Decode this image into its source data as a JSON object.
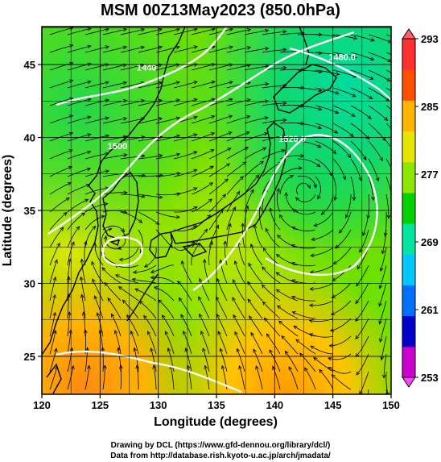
{
  "title": "MSM 00Z13May2023 (850.0hPa)",
  "x_axis": {
    "label": "Longitude (degrees)",
    "ticks": [
      120,
      125,
      130,
      135,
      140,
      145,
      150
    ],
    "range": [
      120,
      150
    ]
  },
  "y_axis": {
    "label": "Latitude  (degrees)",
    "ticks": [
      25,
      30,
      35,
      40,
      45
    ],
    "range": [
      22.4,
      47.6
    ]
  },
  "colorbar": {
    "ticks": [
      253,
      261,
      269,
      277,
      285,
      293
    ],
    "range": [
      253,
      293
    ],
    "colors": [
      "#cc00cc",
      "#0000c8",
      "#0070ff",
      "#00c8ff",
      "#00e6a0",
      "#00d200",
      "#8ce600",
      "#e6e600",
      "#ffb400",
      "#ff5000",
      "#ff3030"
    ]
  },
  "contours": [
    {
      "label": "1440",
      "lon": 129.0,
      "lat": 44.6
    },
    {
      "label": "1500",
      "lon": 126.5,
      "lat": 39.2
    },
    {
      "label": "1520.0",
      "lon": 141.5,
      "lat": 39.7
    },
    {
      "label": "1480.0",
      "lon": 145.8,
      "lat": 45.3
    }
  ],
  "lows": [
    {
      "lon": 142.5,
      "lat": 36.5
    },
    {
      "lon": 126.0,
      "lat": 33.2
    }
  ],
  "credits": {
    "line1": "Drawing by DCL (https://www.gfd-dennou.org/library/dcl/)",
    "line2": "Data from http://database.rish.kyoto-u.ac.jp/arch/jmadata/"
  }
}
